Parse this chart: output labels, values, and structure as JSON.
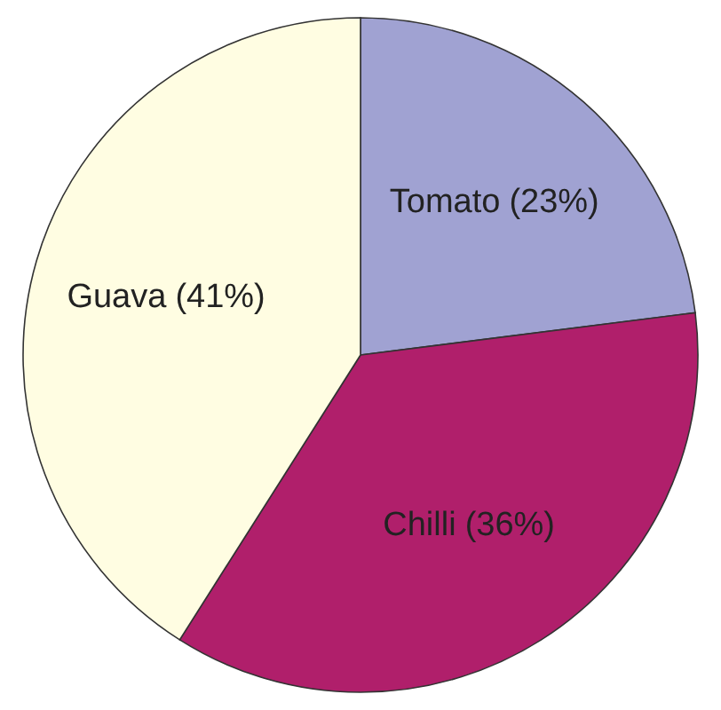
{
  "chart_data": {
    "type": "pie",
    "categories": [
      "Tomato",
      "Chilli",
      "Guava"
    ],
    "values": [
      23,
      36,
      41
    ],
    "colors": [
      "#a0a2d2",
      "#b01f6b",
      "#fffde2"
    ],
    "value_labels": [
      "(23%)",
      "(36%)",
      "(41%)"
    ],
    "legend": false
  }
}
